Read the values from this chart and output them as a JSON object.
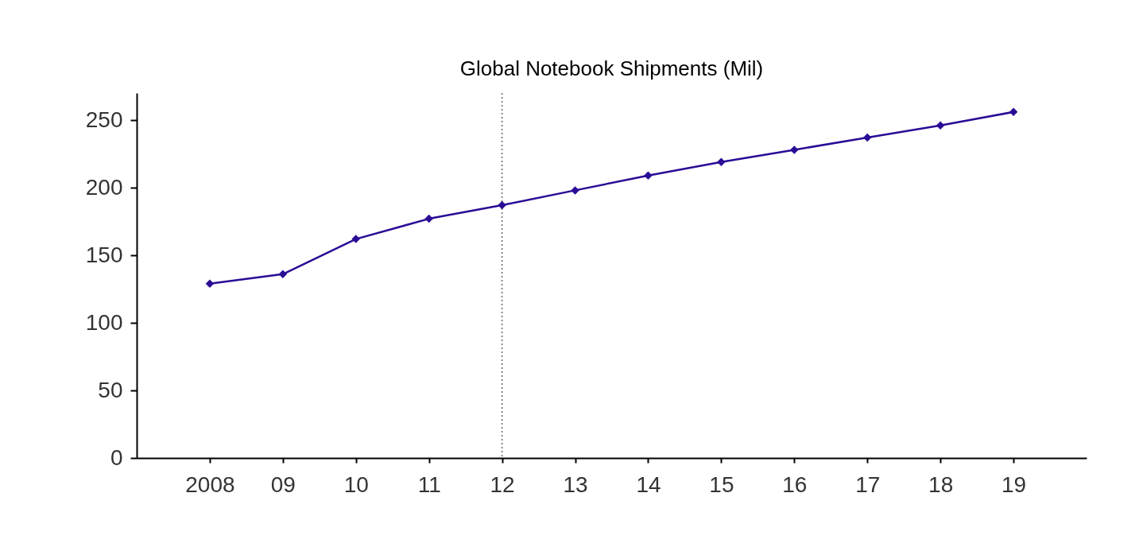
{
  "chart_data": {
    "type": "line",
    "title": "Global Notebook Shipments (Mil)",
    "categories": [
      "2008",
      "09",
      "10",
      "11",
      "12",
      "13",
      "14",
      "15",
      "16",
      "17",
      "18",
      "19"
    ],
    "values": [
      129,
      136,
      162,
      177,
      187,
      198,
      209,
      219,
      228,
      237,
      246,
      256
    ],
    "color": "#2a0c96",
    "marker": "diamond",
    "grid": false,
    "ylim": [
      0,
      270
    ],
    "yticks": [
      0,
      50,
      100,
      150,
      200,
      250
    ],
    "ref_lines": [
      {
        "axis": "x",
        "value": "12",
        "color": "#888888",
        "line_style": "dotted"
      }
    ]
  }
}
